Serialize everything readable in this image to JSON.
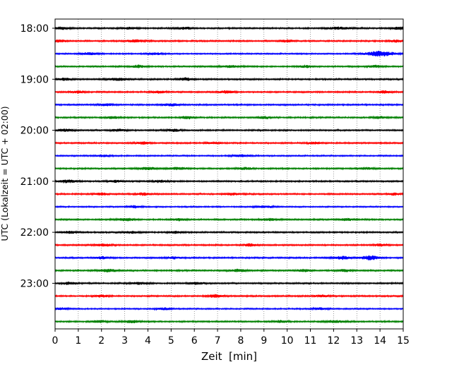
{
  "chart_data": {
    "type": "line",
    "title": "",
    "xlabel": "Zeit  [min]",
    "ylabel": "UTC (Lokalzeit = UTC + 02:00)",
    "xlim": [
      0,
      15
    ],
    "x_ticks": [
      "0",
      "1",
      "2",
      "3",
      "4",
      "5",
      "6",
      "7",
      "8",
      "9",
      "10",
      "11",
      "12",
      "13",
      "14",
      "15"
    ],
    "y_tick_labels": [
      "18:00",
      "19:00",
      "20:00",
      "21:00",
      "22:00",
      "23:00"
    ],
    "grid": "vertical dotted",
    "colors": [
      "#000000",
      "#ff0000",
      "#0000ff",
      "#008000"
    ],
    "traces": [
      {
        "start": "18:00",
        "color": "#000000",
        "amp": 0.9,
        "bursts": [
          [
            0.3,
            0.3,
            1.6
          ],
          [
            3.2,
            0.3,
            1.4
          ],
          [
            5.6,
            0.3,
            1.4
          ],
          [
            12.3,
            0.5,
            1.5
          ],
          [
            14.8,
            0.3,
            1.8
          ]
        ]
      },
      {
        "start": "18:15",
        "color": "#ff0000",
        "amp": 0.9,
        "bursts": [
          [
            0.2,
            0.3,
            1.4
          ],
          [
            3.5,
            0.4,
            1.6
          ],
          [
            10.0,
            0.3,
            1.5
          ],
          [
            14.7,
            0.3,
            1.4
          ]
        ]
      },
      {
        "start": "18:30",
        "color": "#0000ff",
        "amp": 0.8,
        "bursts": [
          [
            1.5,
            0.4,
            1.5
          ],
          [
            4.3,
            0.3,
            1.4
          ],
          [
            14.0,
            0.6,
            3.5
          ]
        ]
      },
      {
        "start": "18:45",
        "color": "#008000",
        "amp": 0.9,
        "bursts": [
          [
            3.6,
            0.3,
            1.6
          ],
          [
            7.5,
            0.4,
            1.4
          ],
          [
            10.8,
            0.3,
            1.4
          ],
          [
            13.8,
            0.3,
            1.5
          ]
        ]
      },
      {
        "start": "19:00",
        "color": "#000000",
        "amp": 0.9,
        "bursts": [
          [
            0.4,
            0.3,
            1.5
          ],
          [
            2.7,
            0.4,
            1.6
          ],
          [
            5.6,
            0.3,
            1.8
          ]
        ]
      },
      {
        "start": "19:15",
        "color": "#ff0000",
        "amp": 0.9,
        "bursts": [
          [
            1.0,
            0.3,
            1.5
          ],
          [
            4.5,
            0.3,
            1.5
          ],
          [
            7.4,
            0.3,
            1.8
          ],
          [
            14.2,
            0.3,
            1.5
          ]
        ]
      },
      {
        "start": "19:30",
        "color": "#0000ff",
        "amp": 0.9,
        "bursts": [
          [
            2.2,
            0.3,
            1.5
          ],
          [
            5.0,
            0.4,
            1.5
          ]
        ]
      },
      {
        "start": "19:45",
        "color": "#008000",
        "amp": 0.9,
        "bursts": [
          [
            2.5,
            0.3,
            1.4
          ],
          [
            5.7,
            0.3,
            1.6
          ],
          [
            9.0,
            0.3,
            1.4
          ],
          [
            14.0,
            0.3,
            1.5
          ]
        ]
      },
      {
        "start": "20:00",
        "color": "#000000",
        "amp": 0.9,
        "bursts": [
          [
            0.4,
            0.4,
            1.5
          ],
          [
            2.7,
            0.3,
            1.5
          ],
          [
            5.1,
            0.3,
            1.6
          ]
        ]
      },
      {
        "start": "20:15",
        "color": "#ff0000",
        "amp": 0.9,
        "bursts": [
          [
            3.8,
            0.3,
            1.5
          ],
          [
            6.8,
            0.3,
            1.4
          ],
          [
            11.2,
            0.3,
            1.4
          ]
        ]
      },
      {
        "start": "20:30",
        "color": "#0000ff",
        "amp": 0.8,
        "bursts": [
          [
            2.1,
            0.3,
            1.4
          ],
          [
            8.0,
            0.4,
            1.4
          ]
        ]
      },
      {
        "start": "20:45",
        "color": "#008000",
        "amp": 0.9,
        "bursts": [
          [
            4.0,
            0.4,
            1.5
          ],
          [
            5.3,
            0.4,
            1.6
          ],
          [
            8.2,
            0.3,
            1.4
          ],
          [
            13.4,
            0.3,
            1.4
          ]
        ]
      },
      {
        "start": "21:00",
        "color": "#000000",
        "amp": 0.9,
        "bursts": [
          [
            0.5,
            0.4,
            1.8
          ],
          [
            2.6,
            0.3,
            1.4
          ],
          [
            4.5,
            0.3,
            1.5
          ]
        ]
      },
      {
        "start": "21:15",
        "color": "#ff0000",
        "amp": 0.9,
        "bursts": [
          [
            2.0,
            0.3,
            1.6
          ],
          [
            3.8,
            0.3,
            1.6
          ],
          [
            7.6,
            0.3,
            1.4
          ],
          [
            14.6,
            0.3,
            1.4
          ]
        ]
      },
      {
        "start": "21:30",
        "color": "#0000ff",
        "amp": 0.8,
        "bursts": [
          [
            3.4,
            0.3,
            1.5
          ],
          [
            9.0,
            0.4,
            1.3
          ]
        ]
      },
      {
        "start": "21:45",
        "color": "#008000",
        "amp": 0.9,
        "bursts": [
          [
            3.1,
            0.4,
            1.6
          ],
          [
            5.4,
            0.3,
            1.5
          ],
          [
            9.2,
            0.4,
            1.4
          ],
          [
            12.6,
            0.3,
            1.4
          ]
        ]
      },
      {
        "start": "22:00",
        "color": "#000000",
        "amp": 0.9,
        "bursts": [
          [
            0.6,
            0.3,
            1.4
          ],
          [
            3.3,
            0.3,
            1.5
          ],
          [
            5.2,
            0.3,
            1.4
          ]
        ]
      },
      {
        "start": "22:15",
        "color": "#ff0000",
        "amp": 0.9,
        "bursts": [
          [
            2.1,
            0.4,
            1.5
          ],
          [
            8.4,
            0.3,
            1.6
          ],
          [
            14.0,
            0.3,
            1.5
          ]
        ]
      },
      {
        "start": "22:30",
        "color": "#0000ff",
        "amp": 0.9,
        "bursts": [
          [
            2.0,
            0.3,
            1.4
          ],
          [
            5.1,
            0.3,
            1.4
          ],
          [
            12.4,
            0.4,
            1.8
          ],
          [
            13.6,
            0.35,
            3.0
          ]
        ]
      },
      {
        "start": "22:45",
        "color": "#008000",
        "amp": 0.9,
        "bursts": [
          [
            2.3,
            0.4,
            1.8
          ],
          [
            7.9,
            0.4,
            1.6
          ],
          [
            10.7,
            0.3,
            1.6
          ],
          [
            12.5,
            0.3,
            1.4
          ]
        ]
      },
      {
        "start": "23:00",
        "color": "#000000",
        "amp": 0.9,
        "bursts": [
          [
            0.6,
            0.3,
            1.5
          ],
          [
            3.6,
            0.3,
            1.4
          ],
          [
            6.1,
            0.3,
            1.5
          ]
        ]
      },
      {
        "start": "23:15",
        "color": "#ff0000",
        "amp": 0.9,
        "bursts": [
          [
            2.0,
            0.3,
            1.4
          ],
          [
            6.9,
            0.3,
            1.9
          ],
          [
            11.5,
            0.3,
            1.4
          ]
        ]
      },
      {
        "start": "23:30",
        "color": "#0000ff",
        "amp": 0.8,
        "bursts": [
          [
            0.3,
            0.3,
            1.4
          ],
          [
            4.7,
            0.3,
            1.4
          ],
          [
            11.4,
            0.3,
            1.4
          ]
        ]
      },
      {
        "start": "23:45",
        "color": "#008000",
        "amp": 0.9,
        "bursts": [
          [
            1.9,
            0.3,
            1.4
          ],
          [
            3.3,
            0.3,
            1.8
          ],
          [
            9.7,
            0.3,
            1.4
          ],
          [
            12.1,
            0.4,
            1.5
          ]
        ]
      }
    ]
  }
}
